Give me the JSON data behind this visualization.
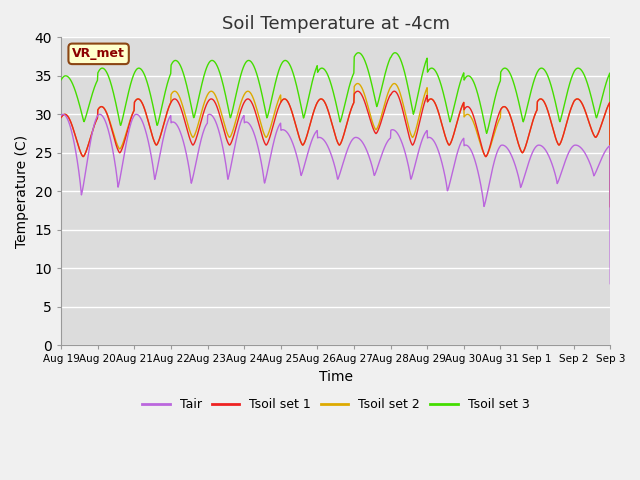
{
  "title": "Soil Temperature at -4cm",
  "xlabel": "Time",
  "ylabel": "Temperature (C)",
  "ylim": [
    0,
    40
  ],
  "yticks": [
    0,
    5,
    10,
    15,
    20,
    25,
    30,
    35,
    40
  ],
  "plot_bg_color": "#dcdcdc",
  "fig_bg_color": "#f0f0f0",
  "line_colors": {
    "Tair": "#bb66dd",
    "Tsoil1": "#ee2222",
    "Tsoil2": "#ddaa00",
    "Tsoil3": "#44dd00"
  },
  "legend_labels": [
    "Tair",
    "Tsoil set 1",
    "Tsoil set 2",
    "Tsoil set 3"
  ],
  "annotation_text": "VR_met",
  "grid_color": "#ffffff",
  "tick_dates": [
    "Aug 19",
    "Aug 20",
    "Aug 21",
    "Aug 22",
    "Aug 23",
    "Aug 24",
    "Aug 25",
    "Aug 26",
    "Aug 27",
    "Aug 28",
    "Aug 29",
    "Aug 30",
    "Aug 31",
    "Sep 1",
    "Sep 2",
    "Sep 3"
  ],
  "n_days": 15,
  "ppd": 96
}
